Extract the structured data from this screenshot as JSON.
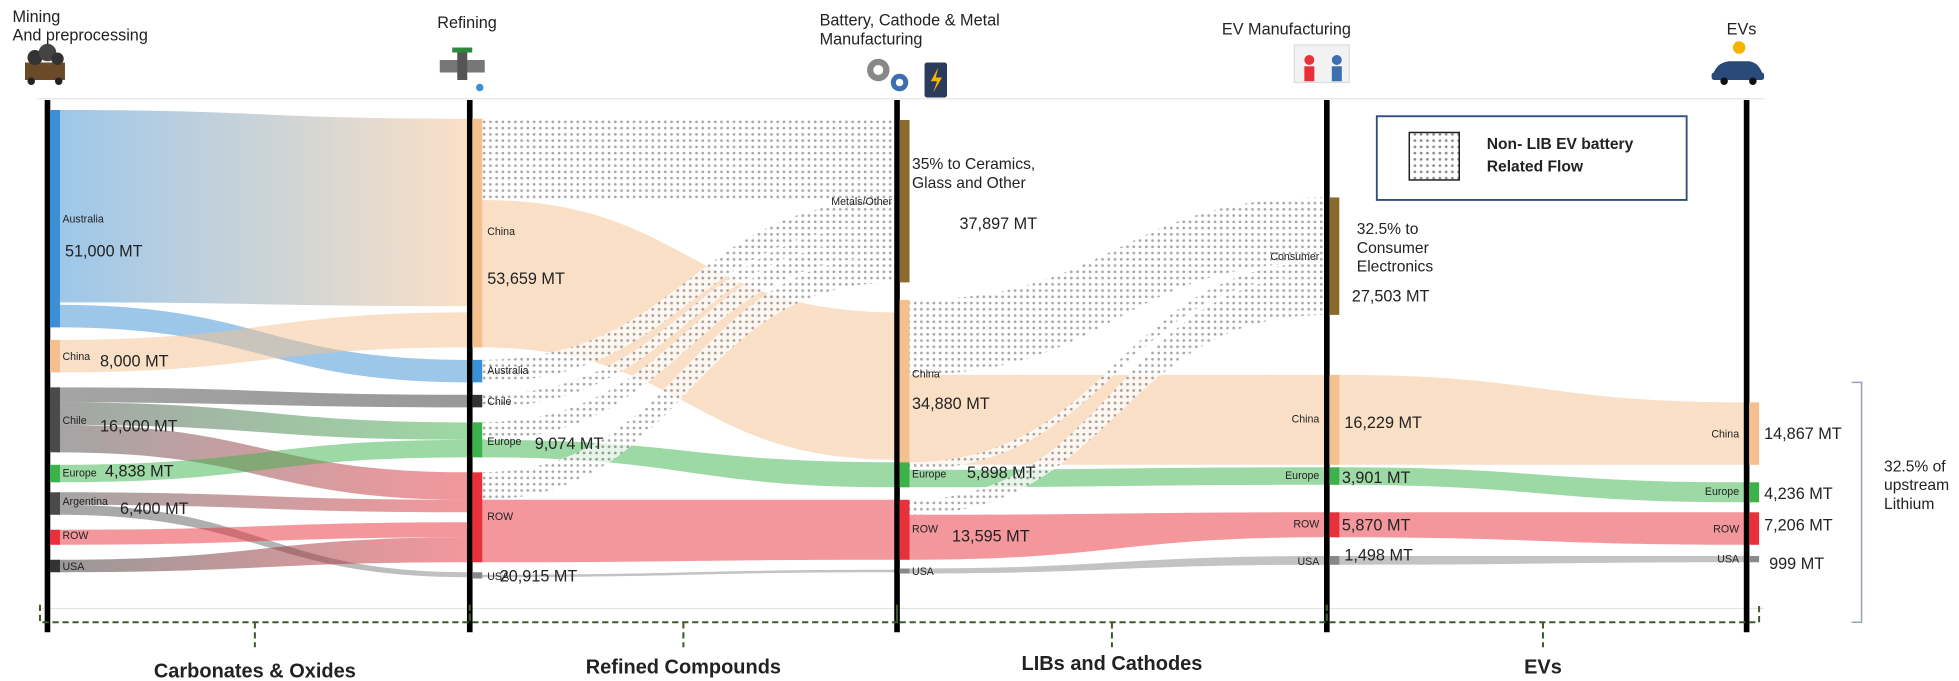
{
  "stages": [
    {
      "lines": [
        "Mining",
        "And preprocessing"
      ]
    },
    {
      "lines": [
        "Refining"
      ]
    },
    {
      "lines": [
        "Battery, Cathode & Metal",
        "Manufacturing"
      ]
    },
    {
      "lines": [
        "EV Manufacturing"
      ]
    },
    {
      "lines": [
        "EVs"
      ]
    }
  ],
  "columns": [
    {
      "nodes": [
        {
          "label": "Australia",
          "value": "51,000 MT",
          "color": "#3b8fd4"
        },
        {
          "label": "China",
          "value": "8,000 MT",
          "color": "#f5c08f"
        },
        {
          "label": "Chile",
          "value": "16,000 MT",
          "color": "#4a4a4a"
        },
        {
          "label": "Europe",
          "value": "4,838 MT",
          "color": "#3cb34a"
        },
        {
          "label": "Argentina",
          "value": "6,400 MT",
          "color": "#4a4a4a"
        },
        {
          "label": "ROW",
          "color": "#e8303a"
        },
        {
          "label": "USA",
          "color": "#333333"
        }
      ]
    },
    {
      "nodes": [
        {
          "label": "China",
          "value": "53,659 MT",
          "color": "#f5c08f"
        },
        {
          "label": "Australia",
          "color": "#3b8fd4"
        },
        {
          "label": "Chile",
          "color": "#333333"
        },
        {
          "label": "Europe",
          "value": "9,074 MT",
          "color": "#3cb34a"
        },
        {
          "label": "ROW",
          "value": "20,915 MT",
          "color": "#e8303a"
        },
        {
          "label": "USA",
          "color": "#888888"
        }
      ]
    },
    {
      "nodes": [
        {
          "label": "Metals/Other",
          "color": "#8c6a2e"
        },
        {
          "label": "China",
          "value": "34,880 MT",
          "color": "#f5c08f"
        },
        {
          "label": "Europe",
          "value": "5,898 MT",
          "color": "#3cb34a"
        },
        {
          "label": "ROW",
          "value": "13,595 MT",
          "color": "#e8303a"
        },
        {
          "label": "USA",
          "color": "#888888"
        }
      ]
    },
    {
      "nodes": [
        {
          "label": "Consumer",
          "color": "#8c6a2e"
        },
        {
          "label": "China",
          "value": "16,229 MT",
          "color": "#f5c08f"
        },
        {
          "label": "Europe",
          "value": "3,901 MT",
          "color": "#3cb34a"
        },
        {
          "label": "ROW",
          "value": "5,870 MT",
          "color": "#e8303a"
        },
        {
          "label": "USA",
          "value": "1,498 MT",
          "color": "#888888"
        }
      ]
    },
    {
      "nodes": [
        {
          "label": "China",
          "value": "14,867 MT",
          "color": "#f5c08f"
        },
        {
          "label": "Europe",
          "value": "4,236 MT",
          "color": "#3cb34a"
        },
        {
          "label": "ROW",
          "value": "7,206 MT",
          "color": "#e8303a"
        },
        {
          "label": "USA",
          "value": "999 MT",
          "color": "#888888"
        }
      ]
    }
  ],
  "annotations": [
    {
      "lines": [
        "35% to Ceramics,",
        "Glass and Other"
      ],
      "value": "37,897 MT"
    },
    {
      "lines": [
        "32.5% to",
        "Consumer",
        "Electronics"
      ],
      "value": "27,503 MT"
    }
  ],
  "bracket_note": {
    "lines": [
      "32.5% of",
      "upstream",
      "Lithium"
    ]
  },
  "legend": {
    "lines": [
      "Non- LIB EV battery",
      "Related Flow"
    ]
  },
  "sections": [
    "Carbonates & Oxides",
    "Refined Compounds",
    "LIBs and Cathodes",
    "EVs"
  ]
}
